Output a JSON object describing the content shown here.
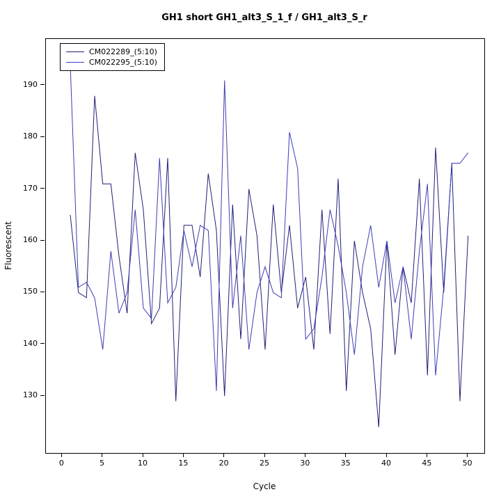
{
  "chart_data": {
    "type": "line",
    "title": "GH1 short GH1_alt3_S_1_f / GH1_alt3_S_r",
    "xlabel": "Cycle",
    "ylabel": "Fluorescent",
    "x_ticks": [
      0,
      5,
      10,
      15,
      20,
      25,
      30,
      35,
      40,
      45,
      50
    ],
    "y_ticks": [
      130,
      140,
      150,
      160,
      170,
      180,
      190
    ],
    "x_range": [
      -2,
      52
    ],
    "y_range": [
      119,
      199
    ],
    "x_start": 1,
    "grid": false,
    "legend_position": "topleft",
    "series": [
      {
        "name": "CM022289_(5:10)",
        "color": "#1f1f78",
        "values": [
          165,
          150,
          149,
          188,
          171,
          171,
          157,
          146,
          177,
          166,
          144,
          147,
          176,
          129,
          163,
          163,
          153,
          173,
          162,
          130,
          167,
          141,
          170,
          161,
          139,
          167,
          150,
          163,
          147,
          153,
          139,
          166,
          142,
          172,
          131,
          160,
          150,
          143,
          124,
          160,
          138,
          155,
          148,
          172,
          134,
          178,
          150,
          175,
          129,
          161
        ]
      },
      {
        "name": "CM022295_(5:10)",
        "color": "#3c3cb4",
        "values": [
          194,
          151,
          152,
          149,
          139,
          158,
          146,
          150,
          166,
          147,
          145,
          176,
          148,
          151,
          162,
          155,
          163,
          162,
          131,
          191,
          147,
          161,
          139,
          150,
          155,
          150,
          149,
          181,
          174,
          141,
          143,
          153,
          166,
          159,
          150,
          138,
          155,
          163,
          151,
          160,
          148,
          155,
          141,
          158,
          171,
          134,
          151,
          175,
          175,
          177
        ]
      }
    ]
  }
}
